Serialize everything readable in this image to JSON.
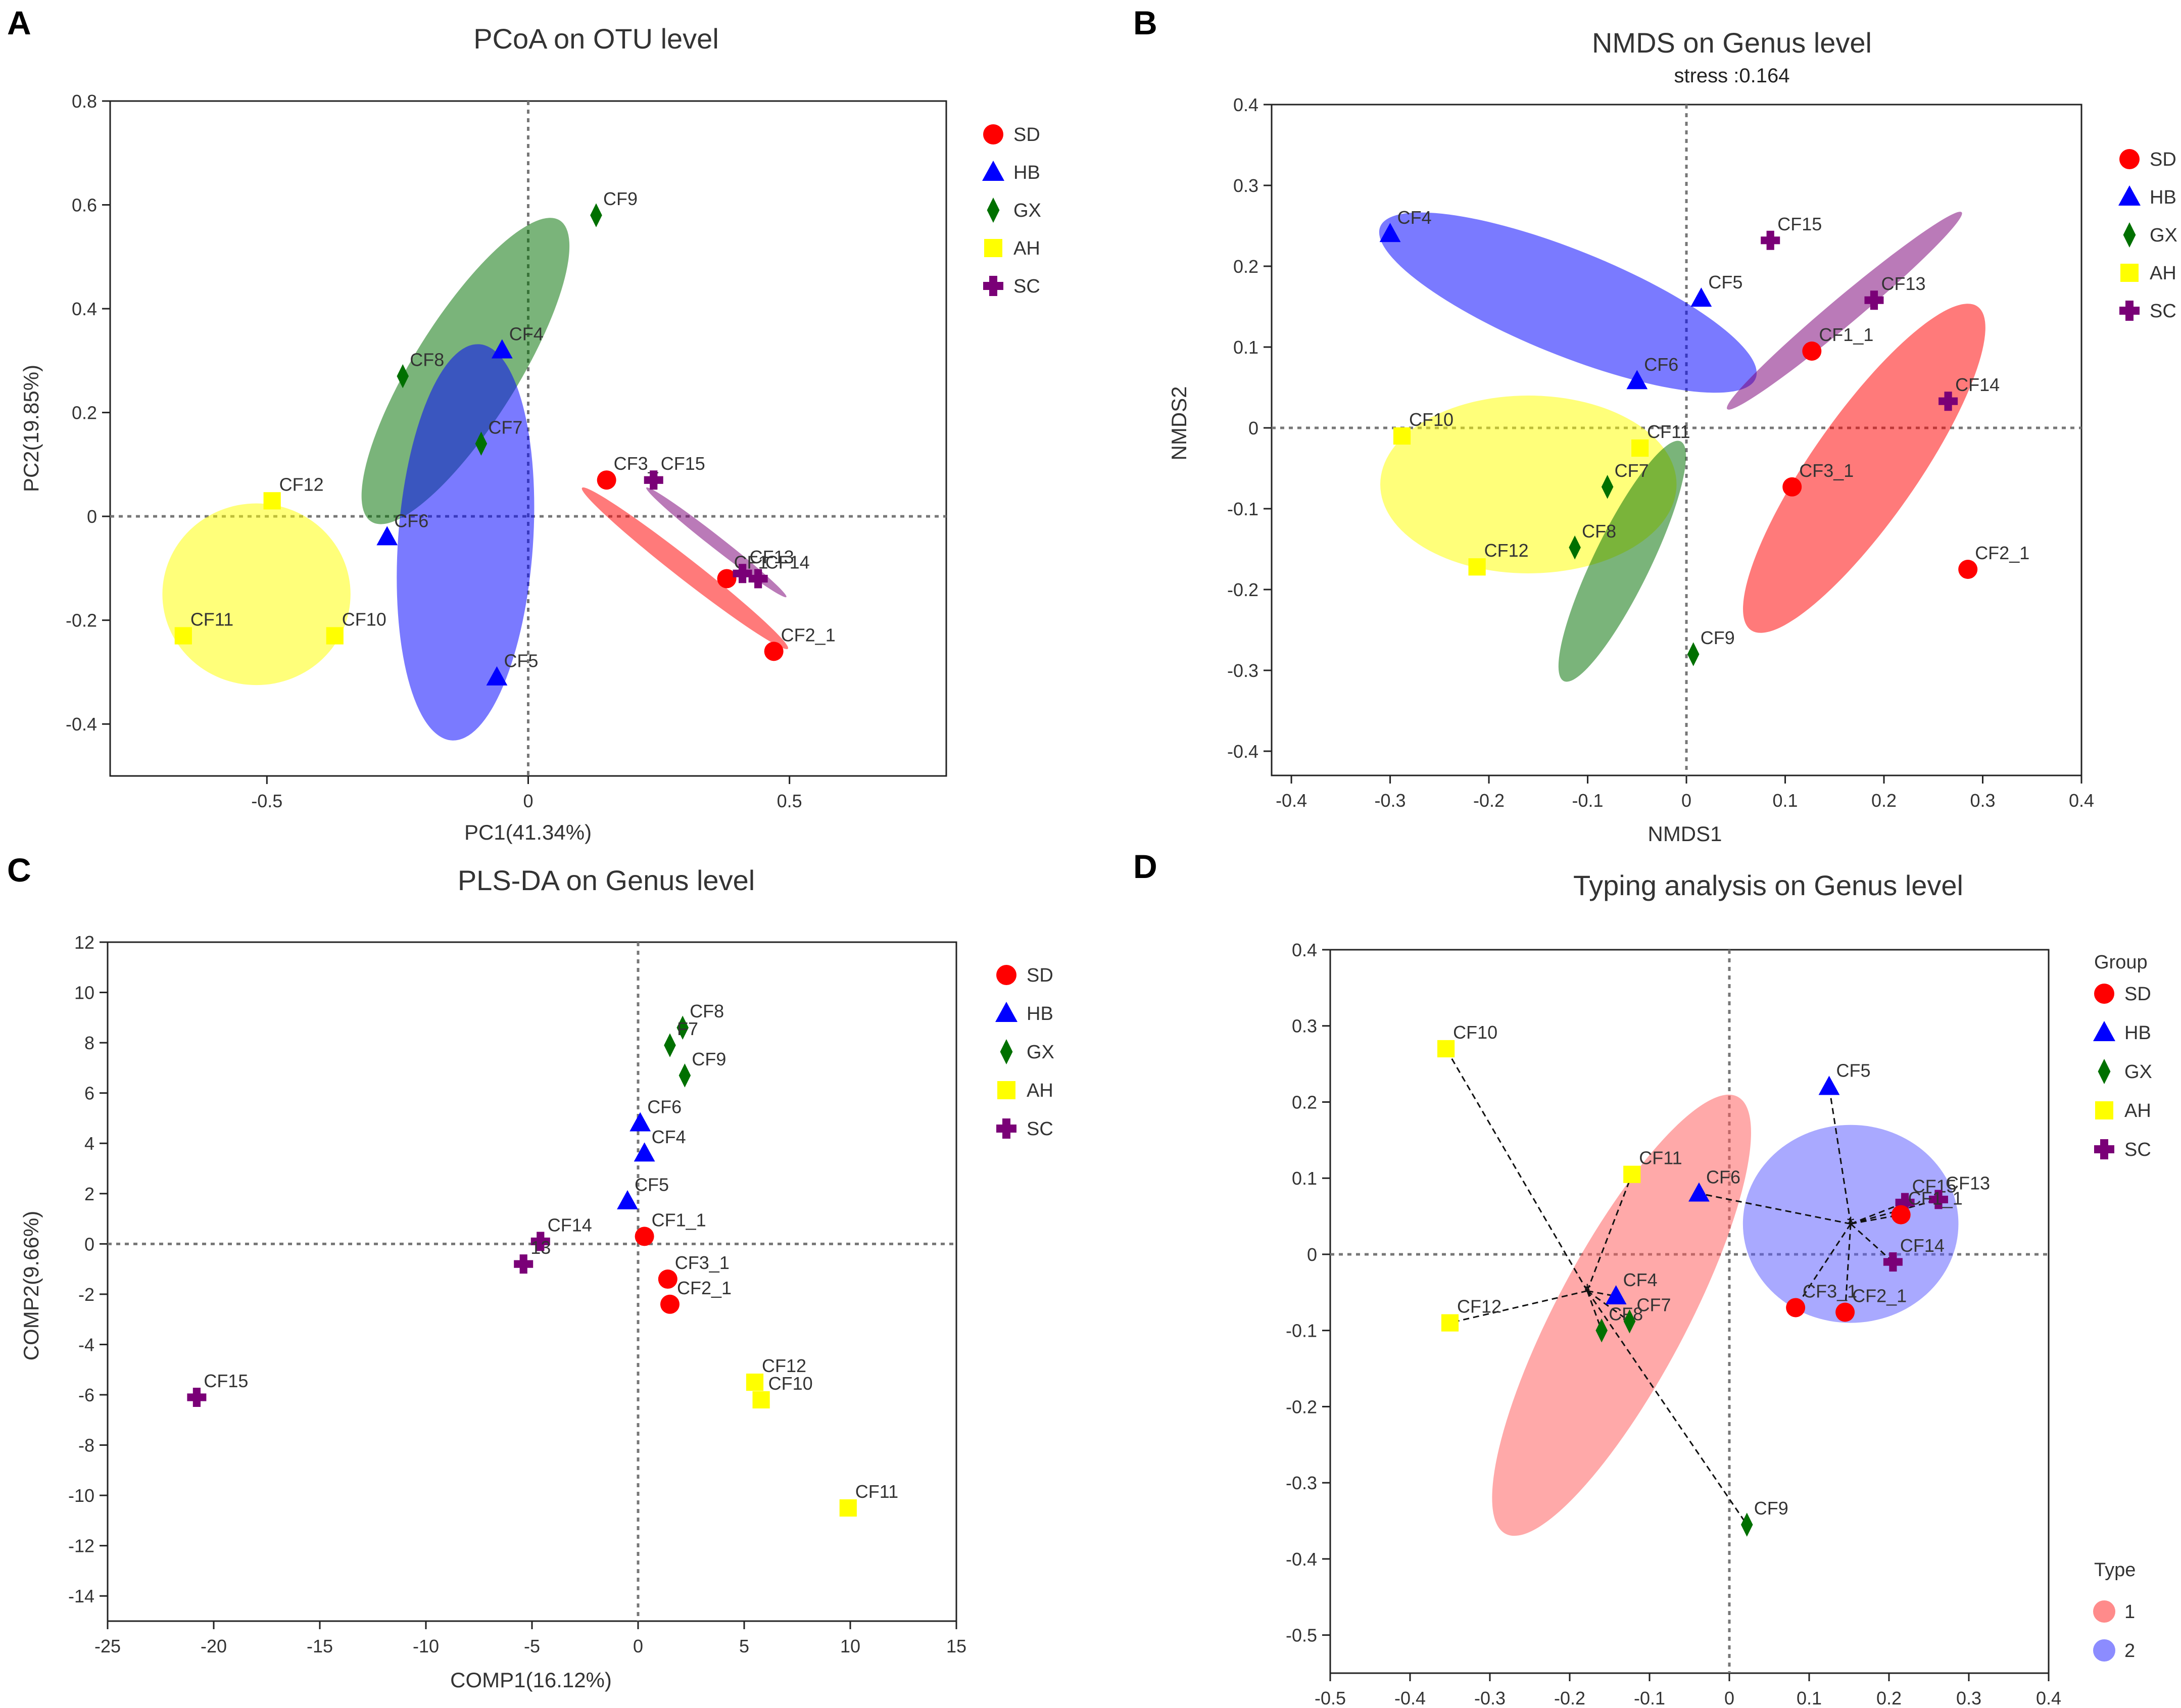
{
  "colors": {
    "SD": "#ff0000",
    "HB": "#0000ff",
    "GX": "#007000",
    "AH": "#ffff00",
    "SC": "#7a0077"
  },
  "chart_data": [
    {
      "panel_letter": "A",
      "type": "scatter",
      "title": "PCoA on OTU level",
      "xlabel": "PC1(41.34%)",
      "ylabel": "PC2(19.85%)",
      "xlim": [
        -0.8,
        0.8
      ],
      "ylim": [
        -0.5,
        0.8
      ],
      "xticks": [
        -0.5,
        0,
        0.5
      ],
      "yticks": [
        -0.4,
        -0.2,
        0,
        0.2,
        0.4,
        0.6,
        0.8
      ],
      "legend": {
        "title": "",
        "entries": [
          "SD",
          "HB",
          "GX",
          "AH",
          "SC"
        ]
      },
      "ellipses": [
        {
          "group": "GX",
          "cx": -0.12,
          "cy": 0.28,
          "rx": 0.34,
          "ry": 0.1,
          "angle": 58
        },
        {
          "group": "HB",
          "cx": -0.12,
          "cy": -0.05,
          "rx": 0.38,
          "ry": 0.13,
          "angle": 86
        },
        {
          "group": "AH",
          "cx": -0.52,
          "cy": -0.15,
          "rx": 0.18,
          "ry": 0.175,
          "angle": 0
        },
        {
          "group": "SD",
          "cx": 0.3,
          "cy": -0.1,
          "rx": 0.25,
          "ry": 0.02,
          "angle": -38
        },
        {
          "group": "SC",
          "cx": 0.36,
          "cy": -0.05,
          "rx": 0.17,
          "ry": 0.012,
          "angle": -38
        }
      ],
      "points": [
        {
          "label": "CF9",
          "group": "GX",
          "x": 0.13,
          "y": 0.58
        },
        {
          "label": "CF4",
          "group": "HB",
          "x": -0.05,
          "y": 0.32
        },
        {
          "label": "CF8",
          "group": "GX",
          "x": -0.24,
          "y": 0.27
        },
        {
          "label": "CF7",
          "group": "GX",
          "x": -0.09,
          "y": 0.14
        },
        {
          "label": "CF12",
          "group": "AH",
          "x": -0.49,
          "y": 0.03
        },
        {
          "label": "CF6",
          "group": "HB",
          "x": -0.27,
          "y": -0.04
        },
        {
          "label": "CF11",
          "group": "AH",
          "x": -0.66,
          "y": -0.23
        },
        {
          "label": "CF10",
          "group": "AH",
          "x": -0.37,
          "y": -0.23
        },
        {
          "label": "CF5",
          "group": "HB",
          "x": -0.06,
          "y": -0.31
        },
        {
          "label": "CF3_",
          "group": "SD",
          "x": 0.15,
          "y": 0.07
        },
        {
          "label": "CF15",
          "group": "SC",
          "x": 0.24,
          "y": 0.07
        },
        {
          "label": "CF1",
          "group": "SD",
          "x": 0.38,
          "y": -0.12
        },
        {
          "label": "CF13",
          "group": "SC",
          "x": 0.41,
          "y": -0.11
        },
        {
          "label": "CF14",
          "group": "SC",
          "x": 0.44,
          "y": -0.12
        },
        {
          "label": "CF2_1",
          "group": "SD",
          "x": 0.47,
          "y": -0.26
        }
      ]
    },
    {
      "panel_letter": "B",
      "type": "scatter",
      "title": "NMDS on Genus level",
      "subtitle": "stress :0.164",
      "xlabel": "NMDS1",
      "ylabel": "NMDS2",
      "xlim": [
        -0.42,
        0.4
      ],
      "ylim": [
        -0.43,
        0.4
      ],
      "xticks": [
        -0.4,
        -0.3,
        -0.2,
        -0.1,
        0,
        0.1,
        0.2,
        0.3,
        0.4
      ],
      "yticks": [
        -0.4,
        -0.3,
        -0.2,
        -0.1,
        0,
        0.1,
        0.2,
        0.3,
        0.4
      ],
      "legend": {
        "title": "",
        "entries": [
          "SD",
          "HB",
          "GX",
          "AH",
          "SC"
        ]
      },
      "ellipses": [
        {
          "group": "HB",
          "cx": -0.12,
          "cy": 0.155,
          "rx": 0.205,
          "ry": 0.065,
          "angle": -22
        },
        {
          "group": "AH",
          "cx": -0.16,
          "cy": -0.07,
          "rx": 0.15,
          "ry": 0.11,
          "angle": 0
        },
        {
          "group": "GX",
          "cx": -0.065,
          "cy": -0.165,
          "rx": 0.135,
          "ry": 0.035,
          "angle": 64
        },
        {
          "group": "SD",
          "cx": 0.18,
          "cy": -0.05,
          "rx": 0.2,
          "ry": 0.065,
          "angle": 55
        },
        {
          "group": "SC",
          "cx": 0.16,
          "cy": 0.145,
          "rx": 0.155,
          "ry": 0.017,
          "angle": 40
        }
      ],
      "points": [
        {
          "label": "CF4",
          "group": "HB",
          "x": -0.3,
          "y": 0.24
        },
        {
          "label": "CF5",
          "group": "HB",
          "x": 0.015,
          "y": 0.16
        },
        {
          "label": "CF6",
          "group": "HB",
          "x": -0.05,
          "y": 0.058
        },
        {
          "label": "CF15",
          "group": "SC",
          "x": 0.085,
          "y": 0.232
        },
        {
          "label": "CF13",
          "group": "SC",
          "x": 0.19,
          "y": 0.158
        },
        {
          "label": "CF14",
          "group": "SC",
          "x": 0.265,
          "y": 0.033
        },
        {
          "label": "CF1_1",
          "group": "SD",
          "x": 0.127,
          "y": 0.095
        },
        {
          "label": "CF3_1",
          "group": "SD",
          "x": 0.107,
          "y": -0.073
        },
        {
          "label": "CF2_1",
          "group": "SD",
          "x": 0.285,
          "y": -0.175
        },
        {
          "label": "CF10",
          "group": "AH",
          "x": -0.288,
          "y": -0.01
        },
        {
          "label": "CF11",
          "group": "AH",
          "x": -0.047,
          "y": -0.025
        },
        {
          "label": "CF12",
          "group": "AH",
          "x": -0.212,
          "y": -0.172
        },
        {
          "label": "CF7",
          "group": "GX",
          "x": -0.08,
          "y": -0.073
        },
        {
          "label": "CF8",
          "group": "GX",
          "x": -0.113,
          "y": -0.148
        },
        {
          "label": "CF9",
          "group": "GX",
          "x": 0.007,
          "y": -0.28
        }
      ]
    },
    {
      "panel_letter": "C",
      "type": "scatter",
      "title": "PLS-DA on Genus level",
      "xlabel": "COMP1(16.12%)",
      "ylabel": "COMP2(9.66%)",
      "xlim": [
        -25,
        15
      ],
      "ylim": [
        -15,
        12
      ],
      "xticks": [
        -25,
        -20,
        -15,
        -10,
        -5,
        0,
        5,
        10,
        15
      ],
      "yticks": [
        -14,
        -12,
        -10,
        -8,
        -6,
        -4,
        -2,
        0,
        2,
        4,
        6,
        8,
        10,
        12
      ],
      "legend": {
        "title": "",
        "entries": [
          "SD",
          "HB",
          "GX",
          "AH",
          "SC"
        ]
      },
      "ellipses": [],
      "points": [
        {
          "label": "CF8",
          "group": "GX",
          "x": 2.1,
          "y": 8.6
        },
        {
          "label": "F7",
          "group": "GX",
          "x": 1.5,
          "y": 7.9
        },
        {
          "label": "CF9",
          "group": "GX",
          "x": 2.2,
          "y": 6.7
        },
        {
          "label": "CF6",
          "group": "HB",
          "x": 0.1,
          "y": 4.8
        },
        {
          "label": "CF4",
          "group": "HB",
          "x": 0.3,
          "y": 3.6
        },
        {
          "label": "CF5",
          "group": "HB",
          "x": -0.5,
          "y": 1.7
        },
        {
          "label": "CF1_1",
          "group": "SD",
          "x": 0.3,
          "y": 0.3
        },
        {
          "label": "CF3_1",
          "group": "SD",
          "x": 1.4,
          "y": -1.4
        },
        {
          "label": "CF2_1",
          "group": "SD",
          "x": 1.5,
          "y": -2.4
        },
        {
          "label": "CF14",
          "group": "SC",
          "x": -4.6,
          "y": 0.1
        },
        {
          "label": "13",
          "group": "SC",
          "x": -5.4,
          "y": -0.8
        },
        {
          "label": "CF15",
          "group": "SC",
          "x": -20.8,
          "y": -6.1
        },
        {
          "label": "CF12",
          "group": "AH",
          "x": 5.5,
          "y": -5.5
        },
        {
          "label": "CF10",
          "group": "AH",
          "x": 5.8,
          "y": -6.2
        },
        {
          "label": "CF11",
          "group": "AH",
          "x": 9.9,
          "y": -10.5
        }
      ]
    },
    {
      "panel_letter": "D",
      "type": "scatter",
      "title": "Typing analysis on Genus level",
      "xlabel": "",
      "ylabel": "",
      "xlim": [
        -0.5,
        0.4
      ],
      "ylim": [
        -0.55,
        0.4
      ],
      "xticks": [
        -0.5,
        -0.4,
        -0.3,
        -0.2,
        -0.1,
        0,
        0.1,
        0.2,
        0.3,
        0.4
      ],
      "yticks": [
        -0.5,
        -0.4,
        -0.3,
        -0.2,
        -0.1,
        0,
        0.1,
        0.2,
        0.3,
        0.4
      ],
      "legend": {
        "title": "Group",
        "entries": [
          "SD",
          "HB",
          "GX",
          "AH",
          "SC"
        ]
      },
      "type_legend": {
        "title": "Type",
        "entries": [
          {
            "label": "1",
            "color": "#ff5a5a"
          },
          {
            "label": "2",
            "color": "#5b5bff"
          }
        ]
      },
      "ellipses": [
        {
          "group": "Type1",
          "cx": -0.135,
          "cy": -0.08,
          "rx": 0.31,
          "ry": 0.085,
          "angle": 62
        },
        {
          "group": "Type2",
          "cx": 0.152,
          "cy": 0.04,
          "rx": 0.135,
          "ry": 0.13,
          "angle": 0
        }
      ],
      "centers": [
        {
          "x": -0.178,
          "y": -0.048
        },
        {
          "x": 0.152,
          "y": 0.04
        }
      ],
      "points": [
        {
          "label": "CF10",
          "group": "AH",
          "x": -0.355,
          "y": 0.27,
          "cluster": 0
        },
        {
          "label": "CF11",
          "group": "AH",
          "x": -0.122,
          "y": 0.105,
          "cluster": 0
        },
        {
          "label": "CF12",
          "group": "AH",
          "x": -0.35,
          "y": -0.09,
          "cluster": 0
        },
        {
          "label": "CF4",
          "group": "HB",
          "x": -0.142,
          "y": -0.055,
          "cluster": 0
        },
        {
          "label": "CF8",
          "group": "GX",
          "x": -0.16,
          "y": -0.1,
          "cluster": 0
        },
        {
          "label": "CF7",
          "group": "GX",
          "x": -0.125,
          "y": -0.088,
          "cluster": 0
        },
        {
          "label": "CF9",
          "group": "GX",
          "x": 0.022,
          "y": -0.355,
          "cluster": 0
        },
        {
          "label": "CF5",
          "group": "HB",
          "x": 0.125,
          "y": 0.22,
          "cluster": 1
        },
        {
          "label": "CF6",
          "group": "HB",
          "x": -0.038,
          "y": 0.08,
          "cluster": 1
        },
        {
          "label": "CF15",
          "group": "SC",
          "x": 0.22,
          "y": 0.068,
          "cluster": 1
        },
        {
          "label": "CF13",
          "group": "SC",
          "x": 0.262,
          "y": 0.072,
          "cluster": 1
        },
        {
          "label": "CF1_1",
          "group": "SD",
          "x": 0.215,
          "y": 0.052,
          "cluster": 1
        },
        {
          "label": "CF14",
          "group": "SC",
          "x": 0.205,
          "y": -0.01,
          "cluster": 1
        },
        {
          "label": "CF3_1",
          "group": "SD",
          "x": 0.083,
          "y": -0.07,
          "cluster": 1
        },
        {
          "label": "CF2_1",
          "group": "SD",
          "x": 0.145,
          "y": -0.076,
          "cluster": 1
        }
      ]
    }
  ]
}
